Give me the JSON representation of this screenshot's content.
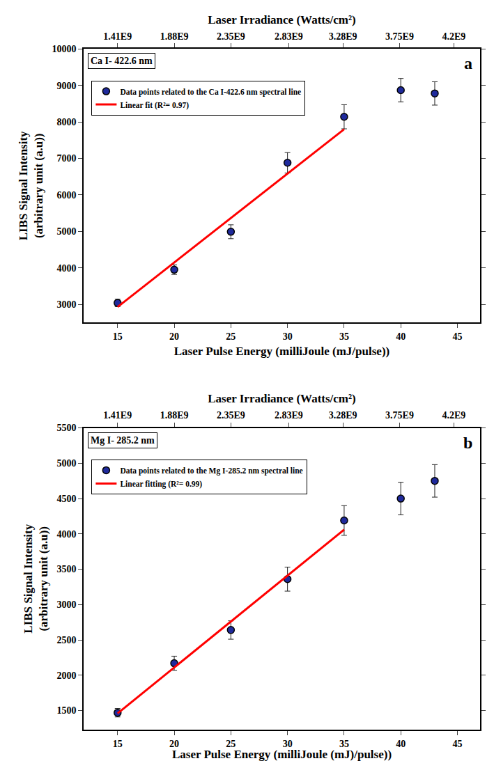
{
  "chart_data": [
    {
      "type": "scatter",
      "title": "Ca I- 422.6 nm",
      "annotations": [
        "a"
      ],
      "x_label": "Laser Pulse Energy (milliJoule (mJ/pulse))",
      "x2_label": "Laser Irradiance (Watts/cm²)",
      "y_label": "LIBS Signal Intensity\n(arbitrary unit (a.u))",
      "xlim": [
        12,
        47
      ],
      "xticks": [
        15,
        20,
        25,
        30,
        35,
        40,
        45
      ],
      "x2lim": [
        1128000000,
        4418000000
      ],
      "x2ticks": [
        {
          "value": 1410000000,
          "label": "1.41E9"
        },
        {
          "value": 1880000000,
          "label": "1.88E9"
        },
        {
          "value": 2350000000,
          "label": "2.35E9"
        },
        {
          "value": 2830000000,
          "label": "2.83E9"
        },
        {
          "value": 3280000000,
          "label": "3.28E9"
        },
        {
          "value": 3750000000,
          "label": "3.75E9"
        },
        {
          "value": 4200000000,
          "label": "4.2E9"
        }
      ],
      "ylim": [
        2500,
        10000
      ],
      "yticks": [
        3000,
        4000,
        5000,
        6000,
        7000,
        8000,
        9000,
        10000
      ],
      "grid": false,
      "legend": "upper left",
      "series": [
        {
          "name": "Data points related to the Ca I-422.6 nm spectral line",
          "type": "scatter",
          "marker": "circle",
          "color": "#1f2a9c",
          "x": [
            15,
            20,
            25,
            30,
            35,
            40,
            43
          ],
          "values": [
            3040,
            3950,
            4990,
            6880,
            8140,
            8870,
            8780
          ],
          "errors": [
            100,
            130,
            190,
            280,
            330,
            320,
            320
          ]
        },
        {
          "name": "Linear fit (R²= 0.97)",
          "type": "line",
          "line_style": "solid",
          "color": "#ff0000",
          "x": [
            15,
            35
          ],
          "values": [
            2930,
            7800
          ]
        }
      ]
    },
    {
      "type": "scatter",
      "title": "Mg I- 285.2 nm",
      "annotations": [
        "b"
      ],
      "x_label": "Laser Pulse Energy (milliJoule (mJ)/pulse))",
      "x2_label": "Laser Irradiance (Watts/cm²)",
      "y_label": "LIBS Signal Intensity\n(arbitrary unit (a.u))",
      "xlim": [
        12,
        47
      ],
      "xticks": [
        15,
        20,
        25,
        30,
        35,
        40,
        45
      ],
      "x2lim": [
        1128000000,
        4418000000
      ],
      "x2ticks": [
        {
          "value": 1410000000,
          "label": "1.41E9"
        },
        {
          "value": 1880000000,
          "label": "1.88E9"
        },
        {
          "value": 2350000000,
          "label": "2.35E9"
        },
        {
          "value": 2830000000,
          "label": "2.83E9"
        },
        {
          "value": 3280000000,
          "label": "3.28E9"
        },
        {
          "value": 3750000000,
          "label": "3.75E9"
        },
        {
          "value": 4200000000,
          "label": "4.2E9"
        }
      ],
      "ylim": [
        1230,
        5500
      ],
      "yticks": [
        1500,
        2000,
        2500,
        3000,
        3500,
        4000,
        4500,
        5000,
        5500
      ],
      "grid": false,
      "legend": "upper left",
      "series": [
        {
          "name": "Data points related to the Mg I-285.2 nm spectral line",
          "type": "scatter",
          "marker": "circle",
          "color": "#1f2a9c",
          "x": [
            15,
            20,
            25,
            30,
            35,
            40,
            43
          ],
          "values": [
            1470,
            2170,
            2640,
            3360,
            4190,
            4500,
            4750
          ],
          "errors": [
            60,
            100,
            130,
            170,
            210,
            230,
            230
          ]
        },
        {
          "name": "Linear fitting (R²= 0.99)",
          "type": "line",
          "line_style": "solid",
          "color": "#ff0000",
          "x": [
            15,
            35
          ],
          "values": [
            1460,
            4060
          ]
        }
      ]
    }
  ]
}
